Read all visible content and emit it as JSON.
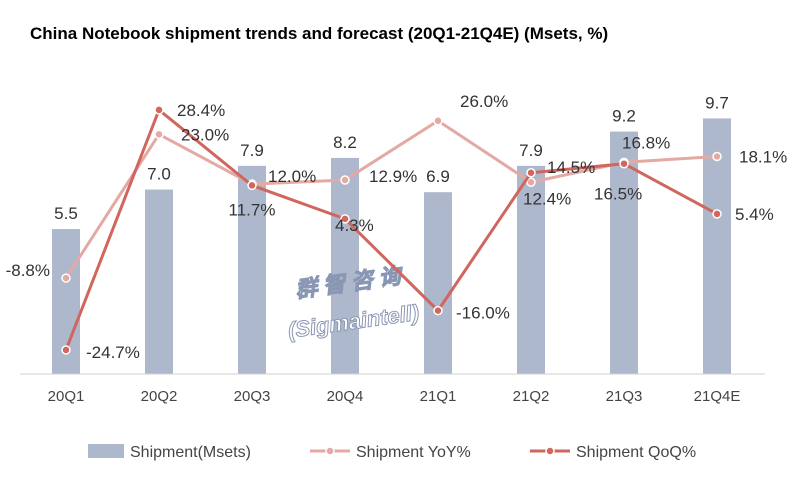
{
  "chart_data": {
    "type": "bar",
    "title": "China Notebook shipment trends and forecast (20Q1-21Q4E) (Msets, %)",
    "categories": [
      "20Q1",
      "20Q2",
      "20Q3",
      "20Q4",
      "21Q1",
      "21Q2",
      "21Q3",
      "21Q4E"
    ],
    "series": [
      {
        "name": "Shipment(Msets)",
        "type": "bar",
        "axis": "primary",
        "values": [
          5.5,
          7.0,
          7.9,
          8.2,
          6.9,
          7.9,
          9.2,
          9.7
        ],
        "labels": [
          "5.5",
          "7.0",
          "7.9",
          "8.2",
          "6.9",
          "7.9",
          "9.2",
          "9.7"
        ],
        "color": "#aeb8cc"
      },
      {
        "name": "Shipment YoY%",
        "type": "line",
        "axis": "secondary",
        "values": [
          -8.8,
          23.0,
          12.0,
          12.9,
          26.0,
          12.4,
          16.8,
          18.1
        ],
        "labels": [
          "-8.8%",
          "23.0%",
          "12.0%",
          "12.9%",
          "26.0%",
          "12.4%",
          "16.8%",
          "18.1%"
        ],
        "color": "#e4a9a2"
      },
      {
        "name": "Shipment QoQ%",
        "type": "line",
        "axis": "secondary",
        "values": [
          -24.7,
          28.4,
          11.7,
          4.3,
          -16.0,
          14.5,
          16.5,
          5.4
        ],
        "labels": [
          "-24.7%",
          "28.4%",
          "11.7%",
          "4.3%",
          "-16.0%",
          "14.5%",
          "16.5%",
          "5.4%"
        ],
        "color": "#d0665d"
      }
    ],
    "legend_position": "bottom",
    "grid": false
  },
  "watermark": {
    "line1": "群智咨询",
    "line2": "(Sigmaintell)"
  }
}
